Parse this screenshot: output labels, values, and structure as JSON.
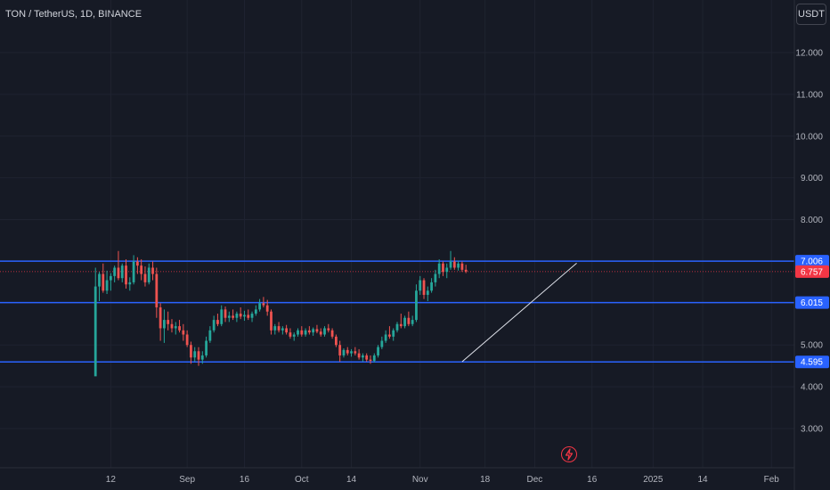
{
  "header": {
    "symbol": "TON / TetherUS, 1D, BINANCE",
    "currency": "USDT"
  },
  "colors": {
    "background": "#161a25",
    "up": "#26a69a",
    "down": "#ef5350",
    "level_line": "#2962ff",
    "current_price": "#f23645",
    "trendline": "#e0e3eb",
    "grid": "#1f2330"
  },
  "icons": {
    "bolt": "lightning-icon"
  },
  "chart_data": {
    "type": "candlestick",
    "grid": true,
    "ylim": [
      2.2,
      12.6
    ],
    "y_ticks": [
      {
        "value": 3,
        "label": "3.000"
      },
      {
        "value": 4,
        "label": "4.000"
      },
      {
        "value": 5,
        "label": "5.000"
      },
      {
        "value": 6,
        "label": "6.000"
      },
      {
        "value": 7,
        "label": "7.000"
      },
      {
        "value": 8,
        "label": "8.000"
      },
      {
        "value": 9,
        "label": "9.000"
      },
      {
        "value": 10,
        "label": "10.000"
      },
      {
        "value": 11,
        "label": "11.000"
      },
      {
        "value": 12,
        "label": "12.000"
      }
    ],
    "x_ticks": [
      {
        "date": "2024-08-12",
        "label": "12"
      },
      {
        "date": "2024-09-01",
        "label": "Sep"
      },
      {
        "date": "2024-09-16",
        "label": "16"
      },
      {
        "date": "2024-10-01",
        "label": "Oct"
      },
      {
        "date": "2024-10-14",
        "label": "14"
      },
      {
        "date": "2024-11-01",
        "label": "Nov"
      },
      {
        "date": "2024-11-18",
        "label": "18"
      },
      {
        "date": "2024-12-01",
        "label": "Dec"
      },
      {
        "date": "2024-12-16",
        "label": "16"
      },
      {
        "date": "2025-01-01",
        "label": "2025"
      },
      {
        "date": "2025-01-14",
        "label": "14"
      },
      {
        "date": "2025-02-01",
        "label": "Feb"
      }
    ],
    "x_range": [
      "2024-07-14",
      "2025-02-07"
    ],
    "levels": [
      {
        "value": 7.006,
        "label": "7.006"
      },
      {
        "value": 6.015,
        "label": "6.015"
      },
      {
        "value": 4.595,
        "label": "4.595"
      }
    ],
    "current_price": {
      "value": 6.757,
      "label": "6.757"
    },
    "trendline": {
      "start": {
        "date": "2024-11-12",
        "value": 4.6
      },
      "end": {
        "date": "2024-12-12",
        "value": 6.96
      }
    },
    "start_date": "2024-08-08",
    "candles": [
      [
        4.25,
        6.85,
        4.3,
        6.4
      ],
      [
        6.4,
        6.75,
        6.05,
        6.7
      ],
      [
        6.7,
        6.95,
        6.25,
        6.3
      ],
      [
        6.3,
        6.78,
        6.22,
        6.55
      ],
      [
        6.55,
        6.72,
        6.3,
        6.65
      ],
      [
        6.65,
        6.9,
        6.5,
        6.85
      ],
      [
        6.85,
        7.25,
        6.55,
        6.6
      ],
      [
        6.6,
        6.95,
        6.5,
        6.9
      ],
      [
        6.9,
        7.05,
        6.35,
        6.45
      ],
      [
        6.45,
        6.62,
        6.3,
        6.5
      ],
      [
        6.5,
        7.15,
        6.45,
        7.0
      ],
      [
        7.0,
        7.1,
        6.7,
        6.9
      ],
      [
        6.9,
        7.05,
        6.55,
        6.7
      ],
      [
        6.7,
        6.88,
        6.4,
        6.5
      ],
      [
        6.5,
        6.95,
        6.45,
        6.85
      ],
      [
        6.85,
        7.0,
        6.55,
        6.7
      ],
      [
        6.7,
        6.85,
        5.65,
        5.9
      ],
      [
        5.9,
        6.0,
        5.1,
        5.4
      ],
      [
        5.4,
        5.85,
        5.05,
        5.6
      ],
      [
        5.6,
        5.8,
        5.35,
        5.5
      ],
      [
        5.5,
        5.62,
        5.3,
        5.4
      ],
      [
        5.4,
        5.55,
        5.25,
        5.45
      ],
      [
        5.45,
        5.6,
        5.3,
        5.35
      ],
      [
        5.35,
        5.5,
        5.1,
        5.25
      ],
      [
        5.25,
        5.35,
        4.95,
        5.0
      ],
      [
        5.0,
        5.08,
        4.55,
        4.7
      ],
      [
        4.7,
        4.95,
        4.6,
        4.85
      ],
      [
        4.85,
        4.95,
        4.5,
        4.65
      ],
      [
        4.65,
        4.85,
        4.55,
        4.75
      ],
      [
        4.75,
        5.2,
        4.7,
        5.1
      ],
      [
        5.1,
        5.45,
        5.05,
        5.35
      ],
      [
        5.35,
        5.7,
        5.3,
        5.6
      ],
      [
        5.6,
        5.75,
        5.45,
        5.5
      ],
      [
        5.5,
        5.95,
        5.45,
        5.85
      ],
      [
        5.85,
        5.92,
        5.55,
        5.65
      ],
      [
        5.65,
        5.8,
        5.55,
        5.7
      ],
      [
        5.7,
        5.85,
        5.6,
        5.65
      ],
      [
        5.65,
        5.8,
        5.55,
        5.75
      ],
      [
        5.75,
        5.9,
        5.62,
        5.68
      ],
      [
        5.68,
        5.82,
        5.58,
        5.72
      ],
      [
        5.72,
        5.85,
        5.6,
        5.65
      ],
      [
        5.65,
        5.8,
        5.55,
        5.75
      ],
      [
        5.75,
        5.95,
        5.7,
        5.85
      ],
      [
        5.85,
        6.1,
        5.8,
        6.0
      ],
      [
        6.0,
        6.15,
        5.9,
        5.95
      ],
      [
        5.95,
        6.08,
        5.7,
        5.8
      ],
      [
        5.8,
        5.85,
        5.25,
        5.35
      ],
      [
        5.35,
        5.5,
        5.25,
        5.45
      ],
      [
        5.45,
        5.55,
        5.3,
        5.35
      ],
      [
        5.35,
        5.45,
        5.25,
        5.4
      ],
      [
        5.4,
        5.48,
        5.25,
        5.3
      ],
      [
        5.3,
        5.4,
        5.15,
        5.2
      ],
      [
        5.2,
        5.3,
        5.1,
        5.25
      ],
      [
        5.25,
        5.4,
        5.2,
        5.35
      ],
      [
        5.35,
        5.45,
        5.2,
        5.25
      ],
      [
        5.25,
        5.4,
        5.2,
        5.35
      ],
      [
        5.35,
        5.45,
        5.25,
        5.3
      ],
      [
        5.3,
        5.42,
        5.22,
        5.38
      ],
      [
        5.38,
        5.48,
        5.28,
        5.32
      ],
      [
        5.32,
        5.4,
        5.2,
        5.25
      ],
      [
        5.25,
        5.45,
        5.2,
        5.4
      ],
      [
        5.4,
        5.5,
        5.3,
        5.35
      ],
      [
        5.35,
        5.4,
        5.15,
        5.2
      ],
      [
        5.2,
        5.25,
        4.95,
        5.0
      ],
      [
        5.0,
        5.1,
        4.6,
        4.75
      ],
      [
        4.75,
        4.92,
        4.7,
        4.88
      ],
      [
        4.88,
        4.95,
        4.75,
        4.8
      ],
      [
        4.8,
        4.9,
        4.72,
        4.85
      ],
      [
        4.85,
        4.95,
        4.75,
        4.8
      ],
      [
        4.8,
        4.9,
        4.65,
        4.7
      ],
      [
        4.7,
        4.8,
        4.6,
        4.75
      ],
      [
        4.75,
        4.8,
        4.6,
        4.65
      ],
      [
        4.65,
        4.75,
        4.55,
        4.62
      ],
      [
        4.62,
        4.8,
        4.58,
        4.75
      ],
      [
        4.75,
        5.0,
        4.7,
        4.95
      ],
      [
        4.95,
        5.2,
        4.9,
        5.1
      ],
      [
        5.1,
        5.35,
        5.05,
        5.25
      ],
      [
        5.25,
        5.45,
        5.15,
        5.2
      ],
      [
        5.2,
        5.4,
        5.1,
        5.35
      ],
      [
        5.35,
        5.55,
        5.3,
        5.5
      ],
      [
        5.5,
        5.75,
        5.4,
        5.45
      ],
      [
        5.45,
        5.7,
        5.4,
        5.65
      ],
      [
        5.65,
        5.8,
        5.45,
        5.5
      ],
      [
        5.5,
        5.7,
        5.45,
        5.6
      ],
      [
        5.6,
        6.45,
        5.55,
        6.3
      ],
      [
        6.3,
        6.65,
        6.2,
        6.55
      ],
      [
        6.55,
        6.6,
        6.1,
        6.2
      ],
      [
        6.2,
        6.4,
        6.05,
        6.3
      ],
      [
        6.3,
        6.6,
        6.25,
        6.5
      ],
      [
        6.5,
        6.8,
        6.4,
        6.7
      ],
      [
        6.7,
        7.05,
        6.6,
        6.95
      ],
      [
        6.95,
        7.0,
        6.65,
        6.75
      ],
      [
        6.75,
        6.95,
        6.6,
        6.85
      ],
      [
        6.85,
        7.25,
        6.8,
        7.0
      ],
      [
        7.0,
        7.1,
        6.8,
        6.85
      ],
      [
        6.85,
        7.02,
        6.78,
        6.95
      ],
      [
        6.95,
        7.0,
        6.75,
        6.8
      ],
      [
        6.8,
        6.92,
        6.72,
        6.76
      ]
    ]
  }
}
